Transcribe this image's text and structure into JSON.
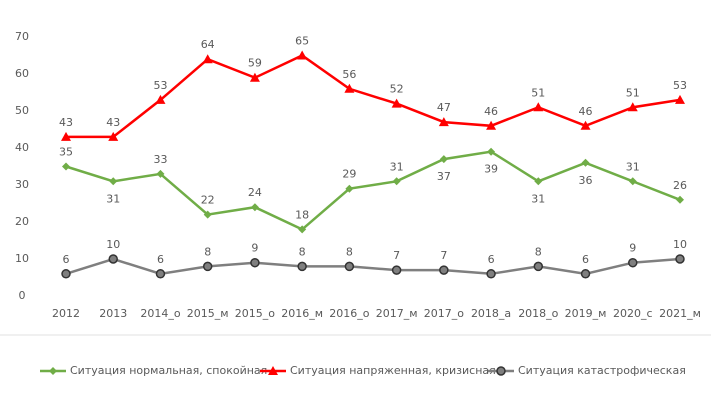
{
  "chart_data": {
    "type": "line",
    "categories": [
      "2012",
      "2013",
      "2014_о",
      "2015_м",
      "2015_о",
      "2016_м",
      "2016_о",
      "2017_м",
      "2017_о",
      "2018_а",
      "2018_о",
      "2019_м",
      "2020_с",
      "2021_м"
    ],
    "series": [
      {
        "name": "Ситуация нормальная, спокойная",
        "color": "#70ad47",
        "marker": "diamond",
        "values": [
          35,
          31,
          33,
          22,
          24,
          18,
          29,
          31,
          37,
          39,
          31,
          36,
          31,
          26
        ]
      },
      {
        "name": "Ситуация напряженная, кризисная",
        "color": "#ff0000",
        "marker": "triangle",
        "values": [
          43,
          43,
          53,
          64,
          59,
          65,
          56,
          52,
          47,
          46,
          51,
          46,
          51,
          53
        ]
      },
      {
        "name": "Ситуация катастрофическая",
        "color": "#7f7f7f",
        "marker": "circle",
        "values": [
          6,
          10,
          6,
          8,
          9,
          8,
          8,
          7,
          7,
          6,
          8,
          6,
          9,
          10
        ]
      }
    ],
    "ylim": [
      0,
      70
    ],
    "yticks": [
      0,
      10,
      20,
      30,
      40,
      50,
      60,
      70
    ],
    "grid": false,
    "legend": "bottom"
  }
}
